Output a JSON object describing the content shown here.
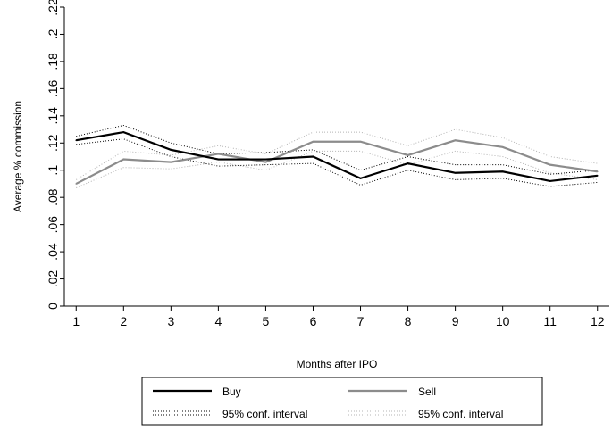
{
  "chart_data": {
    "type": "line",
    "title": "",
    "xlabel": "Months after IPO",
    "ylabel": "Average % commission",
    "x": [
      1,
      2,
      3,
      4,
      5,
      6,
      7,
      8,
      9,
      10,
      11,
      12
    ],
    "xlim": [
      0.75,
      12.25
    ],
    "ylim": [
      0,
      0.22
    ],
    "yticks": [
      0,
      0.02,
      0.04,
      0.06,
      0.08,
      0.1,
      0.12,
      0.14,
      0.16,
      0.18,
      0.2,
      0.22
    ],
    "ytick_labels": [
      "0",
      ".02",
      ".04",
      ".06",
      ".08",
      ".1",
      ".12",
      ".14",
      ".16",
      ".18",
      ".2",
      ".22"
    ],
    "xtick_labels": [
      "1",
      "2",
      "3",
      "4",
      "5",
      "6",
      "7",
      "8",
      "9",
      "10",
      "11",
      "12"
    ],
    "grid": false,
    "legend_position": "bottom",
    "series": [
      {
        "name": "Buy",
        "style": "solid",
        "color": "#000000",
        "values": [
          0.122,
          0.128,
          0.115,
          0.108,
          0.108,
          0.11,
          0.094,
          0.105,
          0.098,
          0.099,
          0.092,
          0.096
        ]
      },
      {
        "name": "Sell",
        "style": "solid",
        "color": "#8c8c8c",
        "values": [
          0.09,
          0.108,
          0.106,
          0.112,
          0.106,
          0.121,
          0.121,
          0.111,
          0.122,
          0.117,
          0.104,
          0.099
        ]
      },
      {
        "name": "95% conf. interval",
        "style": "dotted",
        "color": "#000000",
        "upper": [
          0.125,
          0.133,
          0.12,
          0.112,
          0.113,
          0.115,
          0.1,
          0.11,
          0.104,
          0.104,
          0.097,
          0.1
        ],
        "lower": [
          0.119,
          0.123,
          0.11,
          0.103,
          0.104,
          0.105,
          0.089,
          0.1,
          0.093,
          0.094,
          0.088,
          0.091
        ]
      },
      {
        "name": "95% conf. interval",
        "style": "dotted",
        "color": "#b4b4b4",
        "upper": [
          0.093,
          0.114,
          0.111,
          0.118,
          0.112,
          0.128,
          0.128,
          0.118,
          0.13,
          0.124,
          0.11,
          0.105
        ],
        "lower": [
          0.087,
          0.102,
          0.101,
          0.106,
          0.1,
          0.114,
          0.114,
          0.104,
          0.114,
          0.11,
          0.098,
          0.093
        ]
      }
    ]
  }
}
